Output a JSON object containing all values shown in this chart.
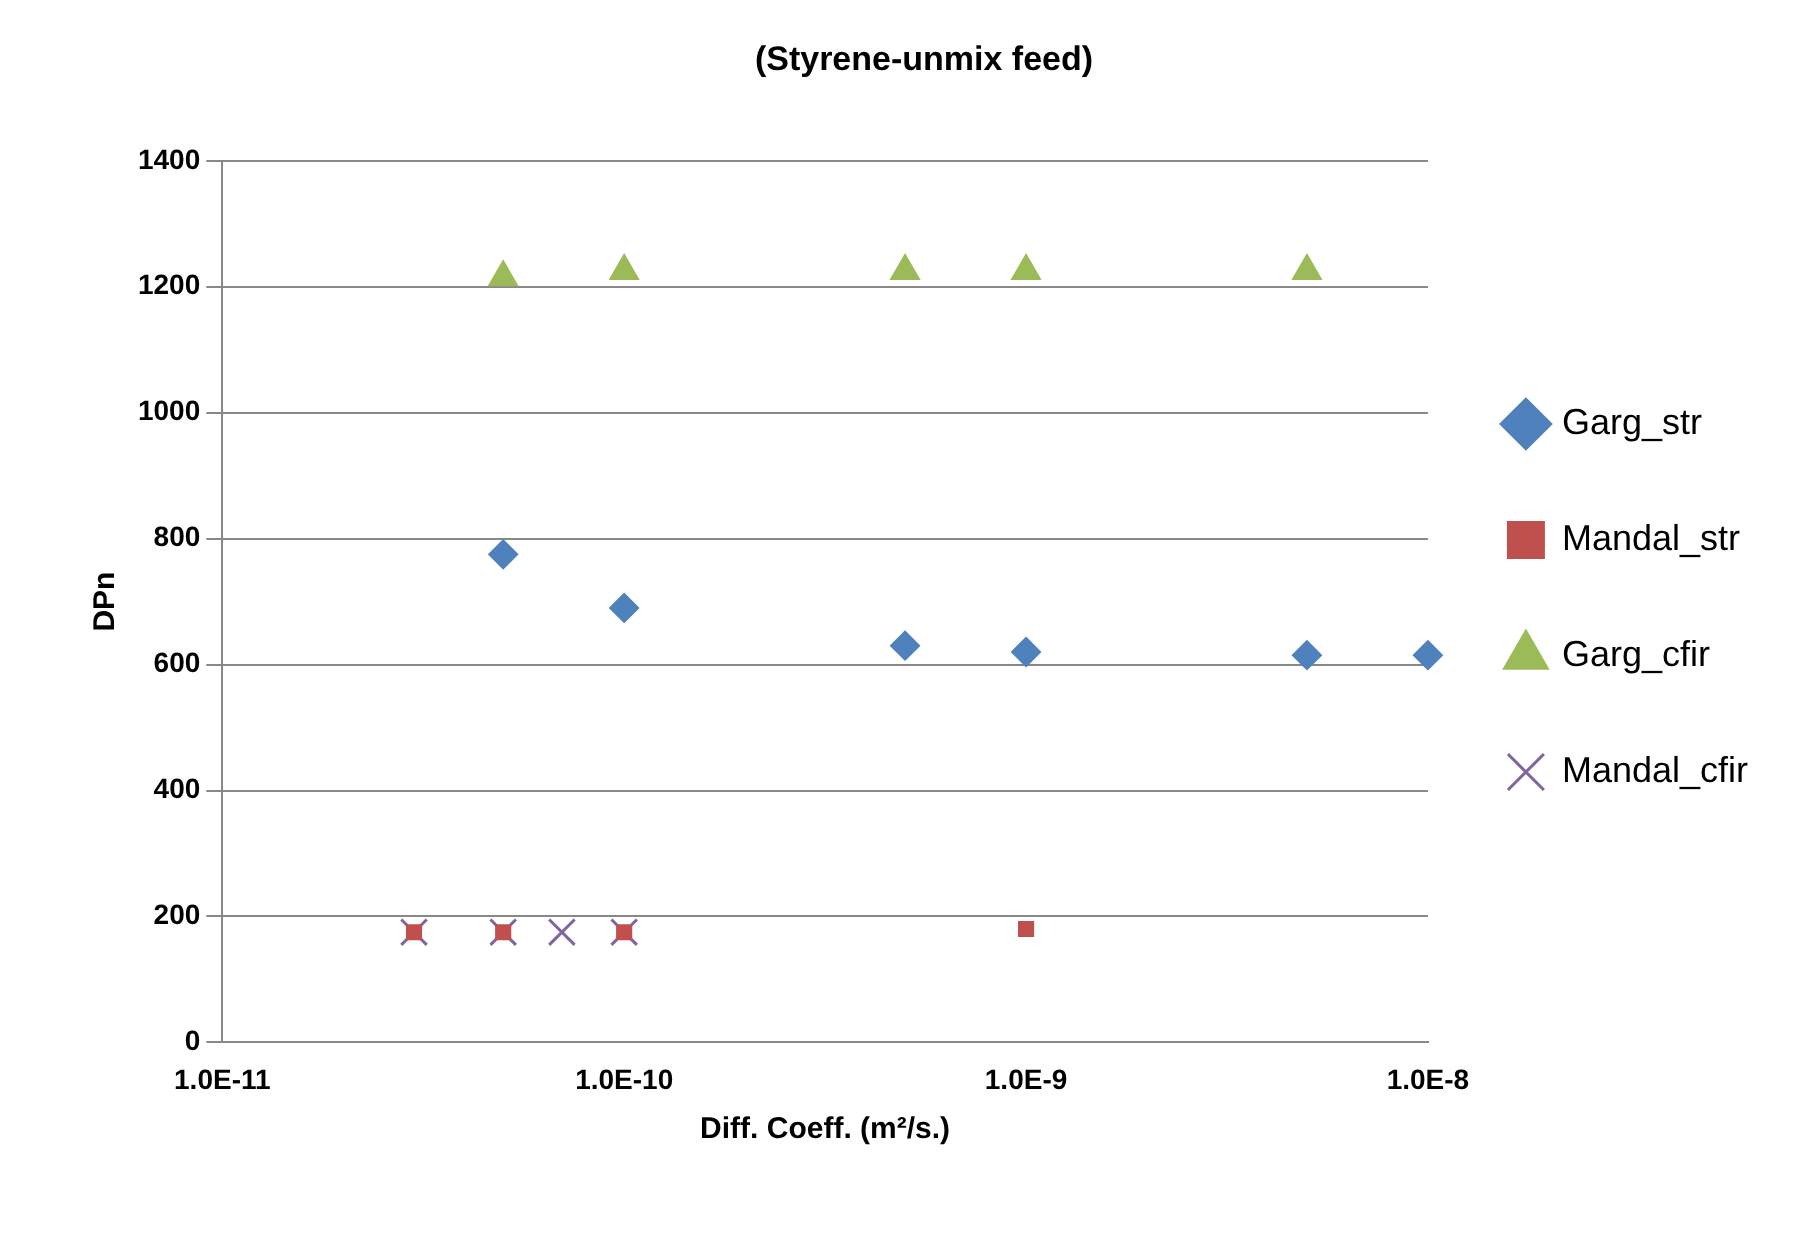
{
  "chart_data": {
    "type": "scatter",
    "title": "(Styrene-unmix feed)",
    "xlabel": "Diff. Coeff. (m²/s.)",
    "ylabel": "DPn",
    "log": "x",
    "xlim": [
      1e-11,
      1e-08
    ],
    "xticks": [
      {
        "value": 1e-11,
        "label": "1.0E-11"
      },
      {
        "value": 1e-10,
        "label": "1.0E-10"
      },
      {
        "value": 1e-09,
        "label": "1.0E-9"
      },
      {
        "value": 1e-08,
        "label": "1.0E-8"
      }
    ],
    "ylim": [
      0,
      1400
    ],
    "yticks": [
      0,
      200,
      400,
      600,
      800,
      1000,
      1200,
      1400
    ],
    "grid": "y",
    "legend": "right",
    "series": [
      {
        "name": "Garg_str",
        "color": "#4f81bd",
        "marker": "diamond",
        "x": [
          5e-11,
          1e-10,
          5e-10,
          1e-09,
          5e-09,
          1e-08
        ],
        "values": [
          775,
          690,
          630,
          620,
          615,
          615
        ]
      },
      {
        "name": "Mandal_str",
        "color": "#c0504d",
        "marker": "square",
        "x": [
          3e-11,
          5e-11,
          1e-10,
          1e-09
        ],
        "values": [
          175,
          175,
          175,
          180
        ]
      },
      {
        "name": "Garg_cfir",
        "color": "#9bbb59",
        "marker": "triangle",
        "x": [
          5e-11,
          1e-10,
          5e-10,
          1e-09,
          5e-09
        ],
        "values": [
          1215,
          1225,
          1225,
          1225,
          1225
        ]
      },
      {
        "name": "Mandal_cfir",
        "color": "#8064a2",
        "marker": "cross",
        "x": [
          3e-11,
          5e-11,
          7e-11,
          1e-10
        ],
        "values": [
          175,
          175,
          175,
          175
        ]
      }
    ]
  }
}
